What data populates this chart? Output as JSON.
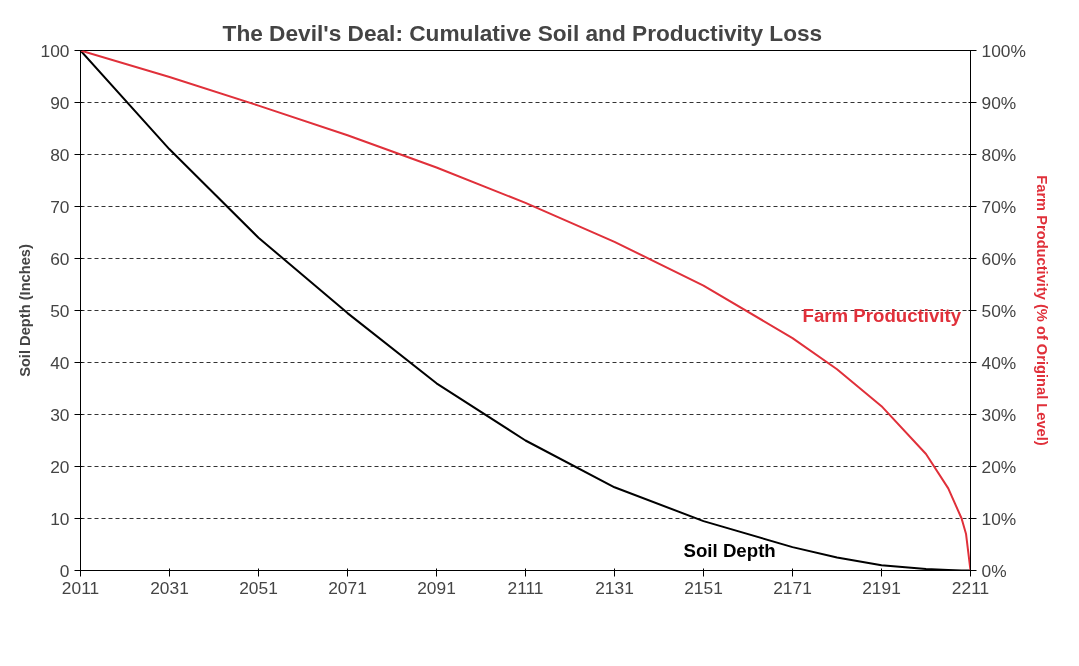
{
  "chart_data": {
    "type": "line",
    "title": "The Devil's Deal:  Cumulative Soil and Productivity Loss",
    "ylabel": "Soil Depth (Inches)",
    "y2label": "Farm Productivity (% of Original Level)",
    "x": [
      2011,
      2031,
      2051,
      2071,
      2091,
      2111,
      2131,
      2151,
      2171,
      2181,
      2191,
      2201,
      2206,
      2209,
      2210,
      2211
    ],
    "series": [
      {
        "name": "Soil Depth",
        "color": "#000000",
        "values": [
          100,
          81,
          64,
          49.5,
          36,
          25,
          16,
          9.5,
          4.5,
          2.5,
          1,
          0.3,
          0.1,
          0,
          0,
          0
        ]
      },
      {
        "name": "Farm Productivity",
        "color": "#e0303a",
        "axis": "y2",
        "values": [
          100,
          94.9,
          89.4,
          83.7,
          77.5,
          70.7,
          63.2,
          54.8,
          44.7,
          38.7,
          31.6,
          22.4,
          15.8,
          10,
          7,
          0
        ]
      }
    ],
    "xlim": [
      2011,
      2211
    ],
    "xticks": [
      2011,
      2031,
      2051,
      2071,
      2091,
      2111,
      2131,
      2151,
      2171,
      2191,
      2211
    ],
    "ylim": [
      0,
      100
    ],
    "yticks": [
      0,
      10,
      20,
      30,
      40,
      50,
      60,
      70,
      80,
      90,
      100
    ],
    "y2lim": [
      0,
      100
    ],
    "y2ticks": [
      {
        "value": 0,
        "label": "0%"
      },
      {
        "value": 10,
        "label": "10%"
      },
      {
        "value": 20,
        "label": "20%"
      },
      {
        "value": 30,
        "label": "30%"
      },
      {
        "value": 40,
        "label": "40%"
      },
      {
        "value": 50,
        "label": "50%"
      },
      {
        "value": 60,
        "label": "60%"
      },
      {
        "value": 70,
        "label": "70%"
      },
      {
        "value": 80,
        "label": "80%"
      },
      {
        "value": 90,
        "label": "90%"
      },
      {
        "value": 100,
        "label": "100%"
      }
    ],
    "grid": "y",
    "line_style": "solid",
    "marker": "none"
  }
}
